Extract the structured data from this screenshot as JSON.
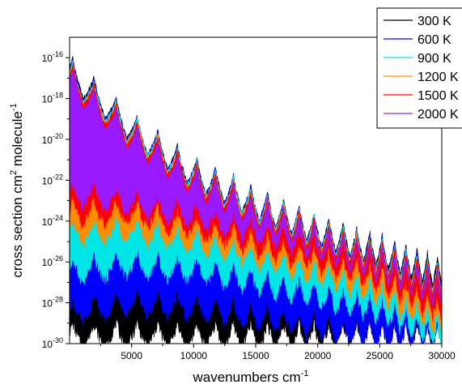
{
  "chart_data": {
    "type": "line",
    "title": "",
    "xlabel": "wavenumbers cm",
    "xlabel_sup": "-1",
    "ylabel": "cross section cm",
    "ylabel_sup1": "2",
    "ylabel_mid": " molecule",
    "ylabel_sup2": "-1",
    "xlim": [
      0,
      30000
    ],
    "ylim": [
      1e-30,
      1e-15
    ],
    "y_scale": "log",
    "x_ticks": [
      {
        "value": 5000,
        "label": "5000"
      },
      {
        "value": 10000,
        "label": "10000"
      },
      {
        "value": 15000,
        "label": "15000"
      },
      {
        "value": 20000,
        "label": "20000"
      },
      {
        "value": 25000,
        "label": "25000"
      },
      {
        "value": 30000,
        "label": "30000"
      }
    ],
    "y_ticks": [
      {
        "exp": -16,
        "base": "10",
        "sup": "-16"
      },
      {
        "exp": -18,
        "base": "10",
        "sup": "-18"
      },
      {
        "exp": -20,
        "base": "10",
        "sup": "-20"
      },
      {
        "exp": -22,
        "base": "10",
        "sup": "-22"
      },
      {
        "exp": -24,
        "base": "10",
        "sup": "-24"
      },
      {
        "exp": -26,
        "base": "10",
        "sup": "-26"
      },
      {
        "exp": -28,
        "base": "10",
        "sup": "-28"
      },
      {
        "exp": -30,
        "base": "10",
        "sup": "-30"
      }
    ],
    "grid": false,
    "legend_position": "top-right",
    "band_peaks_x": [
      250,
      1950,
      3750,
      5450,
      7100,
      8700,
      10250,
      11750,
      13200,
      14600,
      15950,
      17250,
      18500,
      19700,
      20900,
      22050,
      23150,
      24200,
      25200,
      26200,
      27100,
      28000,
      28850,
      29650
    ],
    "series": [
      {
        "name": "300 K",
        "color": "#000000",
        "envelope_x": [
          0,
          5000,
          10000,
          15000,
          20000,
          25000,
          30000
        ],
        "upper_exp": [
          -15.8,
          -18.6,
          -20.8,
          -22.3,
          -23.6,
          -24.6,
          -25.7
        ],
        "lower_exp": [
          -30.0,
          -30.0,
          -30.0,
          -30.0,
          -30.0,
          -30.0,
          -30.0
        ]
      },
      {
        "name": "600 K",
        "color": "#0000ff",
        "envelope_x": [
          0,
          5000,
          10000,
          15000,
          20000,
          25000,
          30000
        ],
        "upper_exp": [
          -15.9,
          -18.6,
          -20.8,
          -22.3,
          -23.6,
          -24.7,
          -25.9
        ],
        "lower_exp": [
          -28.9,
          -28.4,
          -28.6,
          -29.1,
          -29.5,
          -30.0,
          -30.0
        ]
      },
      {
        "name": "900 K",
        "color": "#00e5e5",
        "envelope_x": [
          0,
          5000,
          10000,
          15000,
          20000,
          25000,
          30000
        ],
        "upper_exp": [
          -16.0,
          -18.7,
          -20.9,
          -22.4,
          -23.7,
          -24.8,
          -26.0
        ],
        "lower_exp": [
          -26.9,
          -26.5,
          -26.8,
          -27.4,
          -28.0,
          -28.8,
          -30.0
        ]
      },
      {
        "name": "1200 K",
        "color": "#ff8c00",
        "envelope_x": [
          0,
          5000,
          10000,
          15000,
          20000,
          25000,
          30000
        ],
        "upper_exp": [
          -16.1,
          -18.8,
          -21.0,
          -22.5,
          -23.8,
          -24.9,
          -26.1
        ],
        "lower_exp": [
          -25.0,
          -24.8,
          -25.4,
          -26.1,
          -26.9,
          -27.9,
          -29.5
        ]
      },
      {
        "name": "1500 K",
        "color": "#ff0000",
        "envelope_x": [
          0,
          5000,
          10000,
          15000,
          20000,
          25000,
          30000
        ],
        "upper_exp": [
          -16.2,
          -18.9,
          -21.1,
          -22.6,
          -23.9,
          -25.0,
          -26.2
        ],
        "lower_exp": [
          -24.0,
          -24.0,
          -24.7,
          -25.5,
          -26.3,
          -27.2,
          -28.8
        ]
      },
      {
        "name": "2000 K",
        "color": "#9a1aff",
        "envelope_x": [
          0,
          5000,
          10000,
          15000,
          20000,
          25000,
          30000
        ],
        "upper_exp": [
          -16.4,
          -19.1,
          -21.3,
          -22.8,
          -24.1,
          -25.2,
          -26.5
        ],
        "lower_exp": [
          -23.0,
          -23.5,
          -24.1,
          -24.9,
          -25.6,
          -26.5,
          -28.0
        ]
      }
    ]
  }
}
